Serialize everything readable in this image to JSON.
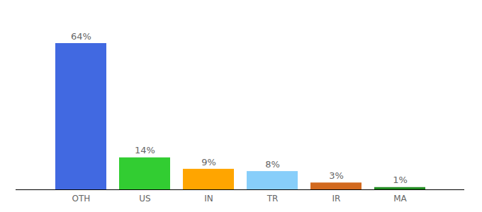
{
  "chart_data": {
    "type": "bar",
    "categories": [
      "OTH",
      "US",
      "IN",
      "TR",
      "IR",
      "MA"
    ],
    "values": [
      64,
      14,
      9,
      8,
      3,
      1
    ],
    "value_labels": [
      "64%",
      "14%",
      "9%",
      "8%",
      "3%",
      "1%"
    ],
    "colors": [
      "#4169e1",
      "#32cd32",
      "#ffa500",
      "#87cefa",
      "#d2691e",
      "#228b22"
    ],
    "data_labels": true,
    "tick_labels": "x"
  }
}
